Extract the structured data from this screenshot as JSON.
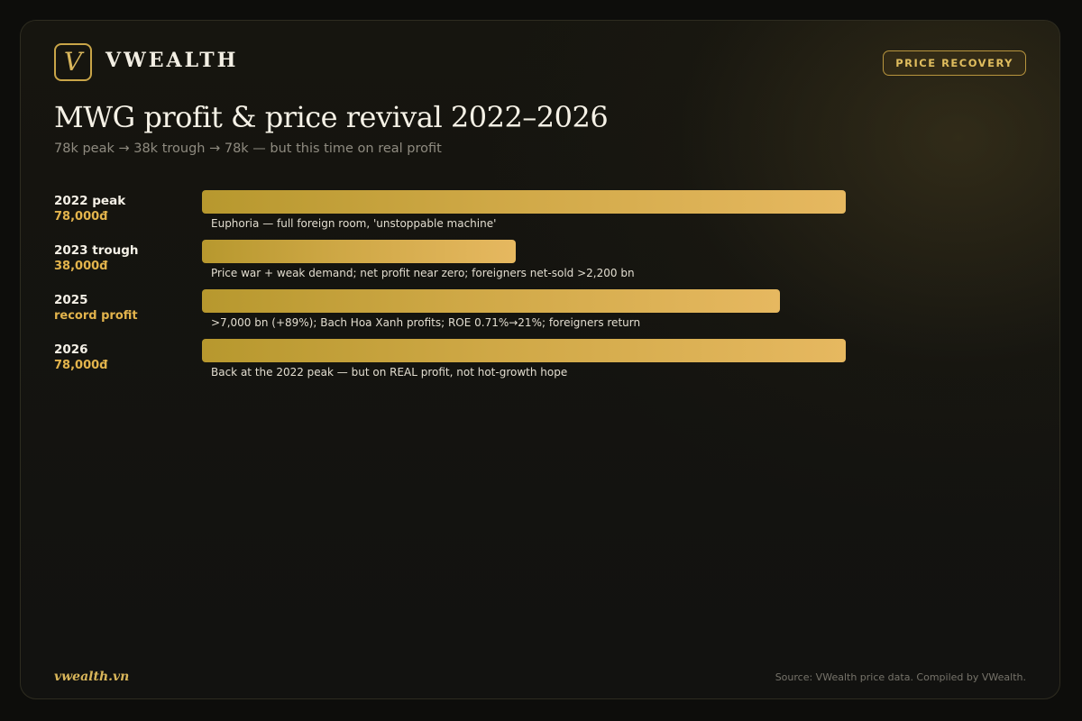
{
  "brand": {
    "logo_letter": "V",
    "name": "VWEALTH"
  },
  "badge": "PRICE RECOVERY",
  "chart_data": {
    "type": "bar",
    "orientation": "horizontal",
    "title": "MWG profit & price revival 2022–2026",
    "subtitle": "78k peak → 38k trough → 78k — but this time on real profit",
    "unit": "đ",
    "grid": false,
    "legend": "none",
    "xlim": [
      0,
      78000
    ],
    "categories": [
      "2022 peak",
      "2023 trough",
      "2025",
      "2026"
    ],
    "values": [
      78000,
      38000,
      70000,
      78000
    ],
    "value_labels": [
      "78,000đ",
      "38,000đ",
      "record profit",
      "78,000đ"
    ],
    "annotations": [
      "Euphoria — full foreign room, 'unstoppable machine'",
      "Price war + weak demand; net profit near zero; foreigners net-sold >2,200 bn",
      ">7,000 bn (+89%); Bach Hoa Xanh profits; ROE 0.71%→21%; foreigners return",
      "Back at the 2022 peak — but on REAL profit, not hot-growth hope"
    ],
    "colors": {
      "bar_start": "#b7982e",
      "bar_end": "#e6b860",
      "value_text": "#e3b44c"
    }
  },
  "footer": {
    "site": "vwealth.vn",
    "source": "Source: VWealth price data. Compiled by VWealth."
  }
}
